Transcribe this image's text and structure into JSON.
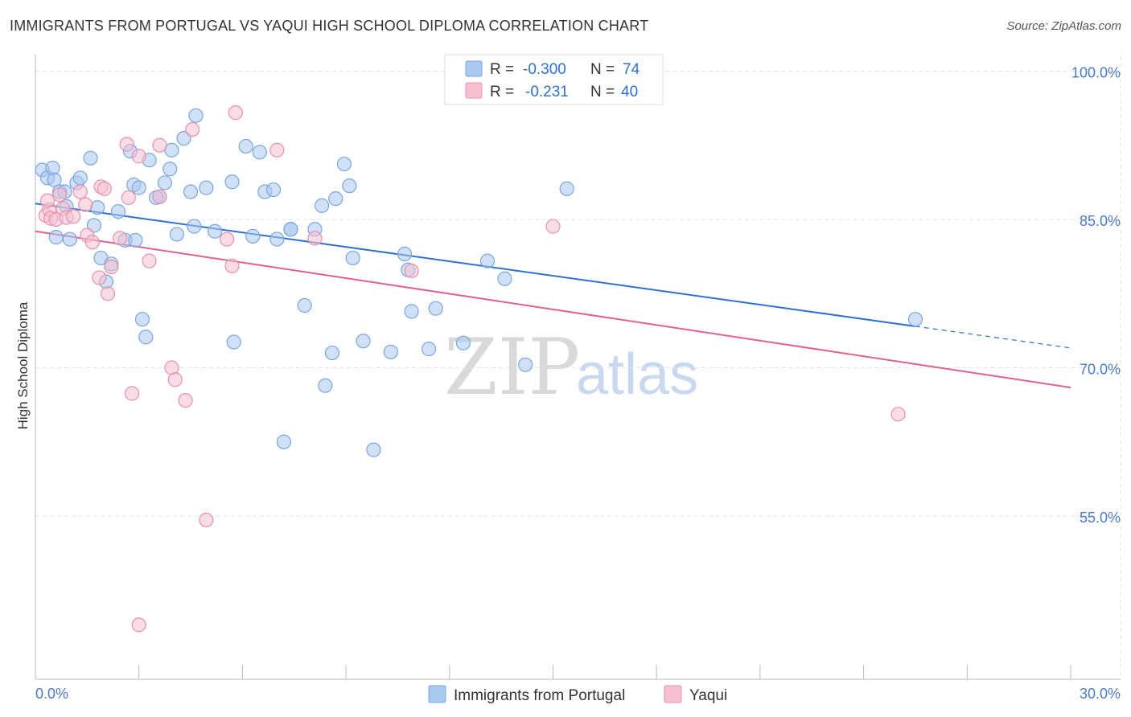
{
  "header": {
    "title": "IMMIGRANTS FROM PORTUGAL VS YAQUI HIGH SCHOOL DIPLOMA CORRELATION CHART",
    "source": "Source: ZipAtlas.com"
  },
  "watermark": {
    "zip": "ZIP",
    "atlas": "atlas"
  },
  "colors": {
    "blue_fill": "#aac8f0",
    "blue_stroke": "#7aa6e0",
    "blue_line": "#2f6fd0",
    "pink_fill": "#f6c0d0",
    "pink_stroke": "#e890ad",
    "pink_line": "#e0608e",
    "tick_text": "#4a7bc8",
    "grid": "#e3e3e3"
  },
  "legend_top": {
    "rows": [
      {
        "r_label": "R =",
        "r_value": "-0.300",
        "n_label": "N =",
        "n_value": "74"
      },
      {
        "r_label": "R =",
        "r_value": "-0.231",
        "n_label": "N =",
        "n_value": "40"
      }
    ]
  },
  "legend_bottom": {
    "items": [
      "Immigrants from Portugal",
      "Yaqui"
    ]
  },
  "chart_data": {
    "type": "scatter",
    "title": "IMMIGRANTS FROM PORTUGAL VS YAQUI HIGH SCHOOL DIPLOMA CORRELATION CHART",
    "xlabel": "",
    "ylabel": "High School Diploma",
    "xlim": [
      0,
      30
    ],
    "ylim": [
      38.5,
      101.5
    ],
    "x_tick_labels": [
      "0.0%",
      "30.0%"
    ],
    "y_ticks": [
      100,
      85,
      70,
      55
    ],
    "y_tick_labels": [
      "100.0%",
      "85.0%",
      "70.0%",
      "55.0%"
    ],
    "grid": true,
    "legend_position": "top-center and bottom",
    "series": [
      {
        "name": "Immigrants from Portugal",
        "color": "#aac8f0",
        "trend": {
          "x_start": 0,
          "y_start": 86.6,
          "x_solid_end": 25.5,
          "x_end": 30,
          "y_end": 72.0
        },
        "points": [
          [
            0.2,
            90.0
          ],
          [
            0.35,
            89.2
          ],
          [
            0.5,
            90.2
          ],
          [
            0.55,
            89.0
          ],
          [
            0.7,
            87.8
          ],
          [
            0.6,
            83.2
          ],
          [
            0.85,
            87.8
          ],
          [
            0.9,
            86.3
          ],
          [
            1.2,
            88.7
          ],
          [
            1.3,
            89.2
          ],
          [
            1.6,
            91.2
          ],
          [
            1.7,
            84.4
          ],
          [
            1.8,
            86.2
          ],
          [
            1.9,
            81.1
          ],
          [
            2.05,
            78.7
          ],
          [
            2.2,
            80.5
          ],
          [
            2.4,
            85.8
          ],
          [
            2.6,
            82.9
          ],
          [
            2.75,
            91.9
          ],
          [
            2.85,
            88.5
          ],
          [
            3.0,
            88.2
          ],
          [
            3.1,
            74.9
          ],
          [
            3.2,
            73.1
          ],
          [
            3.3,
            91.0
          ],
          [
            3.6,
            87.3
          ],
          [
            3.75,
            88.7
          ],
          [
            3.9,
            90.1
          ],
          [
            3.95,
            92.0
          ],
          [
            4.1,
            83.5
          ],
          [
            4.3,
            93.2
          ],
          [
            4.5,
            87.8
          ],
          [
            4.6,
            84.3
          ],
          [
            4.65,
            95.5
          ],
          [
            4.95,
            88.2
          ],
          [
            5.2,
            83.8
          ],
          [
            5.7,
            88.8
          ],
          [
            5.75,
            72.6
          ],
          [
            6.1,
            92.4
          ],
          [
            6.3,
            83.3
          ],
          [
            6.5,
            91.8
          ],
          [
            6.65,
            87.8
          ],
          [
            6.9,
            88.0
          ],
          [
            7.0,
            83.0
          ],
          [
            7.2,
            62.5
          ],
          [
            7.4,
            84.0
          ],
          [
            7.8,
            76.3
          ],
          [
            8.1,
            84.0
          ],
          [
            8.3,
            86.4
          ],
          [
            8.4,
            68.2
          ],
          [
            8.6,
            71.5
          ],
          [
            8.7,
            87.1
          ],
          [
            8.95,
            90.6
          ],
          [
            9.1,
            88.4
          ],
          [
            9.2,
            81.1
          ],
          [
            9.5,
            72.7
          ],
          [
            9.8,
            61.7
          ],
          [
            10.3,
            71.6
          ],
          [
            10.7,
            81.5
          ],
          [
            10.8,
            79.9
          ],
          [
            10.9,
            75.7
          ],
          [
            11.4,
            71.9
          ],
          [
            11.6,
            76.0
          ],
          [
            12.4,
            72.5
          ],
          [
            13.1,
            80.8
          ],
          [
            13.6,
            79.0
          ],
          [
            14.2,
            70.3
          ],
          [
            14.1,
            100.1
          ],
          [
            15.4,
            88.1
          ],
          [
            16.8,
            100.1
          ],
          [
            25.5,
            74.9
          ],
          [
            1.0,
            83.0
          ],
          [
            3.5,
            87.2
          ],
          [
            7.4,
            84.0
          ],
          [
            2.9,
            82.9
          ]
        ]
      },
      {
        "name": "Yaqui",
        "color": "#f6c0d0",
        "trend": {
          "x_start": 0,
          "y_start": 83.8,
          "x_end": 30,
          "y_end": 68.0
        },
        "points": [
          [
            0.3,
            85.4
          ],
          [
            0.4,
            86.0
          ],
          [
            0.45,
            85.1
          ],
          [
            0.6,
            85.0
          ],
          [
            0.7,
            87.5
          ],
          [
            0.8,
            86.1
          ],
          [
            0.9,
            85.2
          ],
          [
            1.1,
            85.3
          ],
          [
            1.3,
            87.8
          ],
          [
            1.45,
            86.5
          ],
          [
            1.5,
            83.4
          ],
          [
            1.65,
            82.7
          ],
          [
            1.85,
            79.1
          ],
          [
            1.9,
            88.3
          ],
          [
            2.0,
            88.1
          ],
          [
            2.1,
            77.5
          ],
          [
            2.2,
            80.2
          ],
          [
            2.45,
            83.1
          ],
          [
            2.65,
            92.6
          ],
          [
            2.7,
            87.2
          ],
          [
            2.8,
            67.4
          ],
          [
            3.0,
            91.4
          ],
          [
            3.3,
            80.8
          ],
          [
            3.6,
            92.5
          ],
          [
            3.6,
            87.3
          ],
          [
            3.95,
            70.0
          ],
          [
            4.05,
            68.8
          ],
          [
            4.35,
            66.7
          ],
          [
            4.55,
            94.1
          ],
          [
            4.95,
            54.6
          ],
          [
            5.55,
            83.0
          ],
          [
            5.7,
            80.3
          ],
          [
            5.8,
            95.8
          ],
          [
            7.0,
            92.0
          ],
          [
            8.1,
            83.1
          ],
          [
            10.9,
            79.8
          ],
          [
            15.0,
            84.3
          ],
          [
            25.0,
            65.3
          ],
          [
            3.0,
            44.0
          ],
          [
            0.35,
            86.9
          ]
        ]
      }
    ]
  }
}
